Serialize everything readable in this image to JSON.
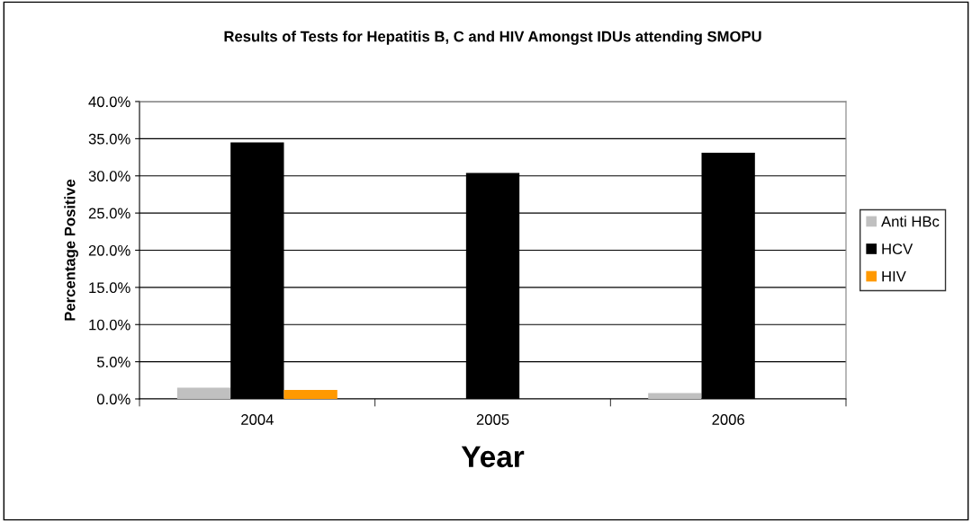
{
  "chart_data": {
    "type": "bar",
    "title": "Results of Tests for Hepatitis B, C and HIV Amongst IDUs attending SMOPU",
    "xlabel": "Year",
    "ylabel": "Percentage Positive",
    "categories": [
      "2004",
      "2005",
      "2006"
    ],
    "series": [
      {
        "name": "Anti HBc",
        "color": "#c0c0c0",
        "values": [
          1.5,
          0,
          0.8
        ]
      },
      {
        "name": "HCV",
        "color": "#000000",
        "values": [
          34.5,
          30.4,
          33.1
        ]
      },
      {
        "name": "HIV",
        "color": "#ff9900",
        "values": [
          1.2,
          0,
          0
        ]
      }
    ],
    "ylim": [
      0,
      40
    ],
    "yticks": [
      {
        "value": 0,
        "label": "0.0%"
      },
      {
        "value": 5,
        "label": "5.0%"
      },
      {
        "value": 10,
        "label": "10.0%"
      },
      {
        "value": 15,
        "label": "15.0%"
      },
      {
        "value": 20,
        "label": "20.0%"
      },
      {
        "value": 25,
        "label": "25.0%"
      },
      {
        "value": 30,
        "label": "30.0%"
      },
      {
        "value": 35,
        "label": "35.0%"
      },
      {
        "value": 40,
        "label": "40.0%"
      }
    ],
    "grid": "y",
    "legend": "right"
  }
}
